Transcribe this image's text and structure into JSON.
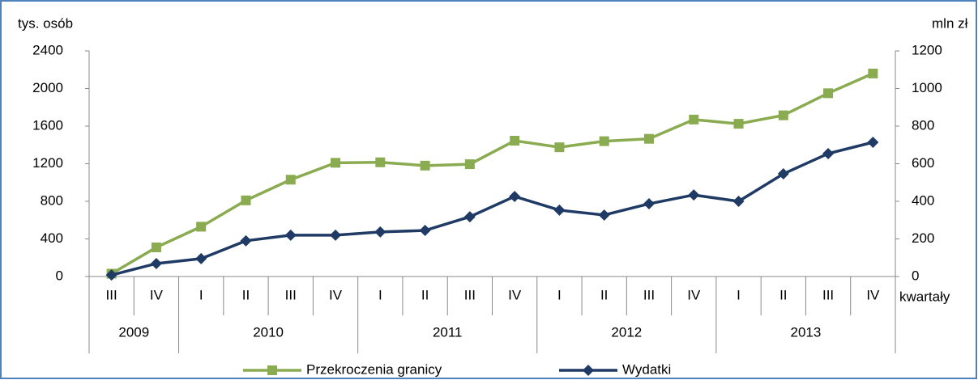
{
  "chart_data": {
    "type": "line",
    "y_label": "tys. osób",
    "y2_label": "mln zł",
    "x_label": "kwartały",
    "groups": [
      {
        "name": "2009",
        "categories": [
          "III",
          "IV"
        ]
      },
      {
        "name": "2010",
        "categories": [
          "I",
          "II",
          "III",
          "IV"
        ]
      },
      {
        "name": "2011",
        "categories": [
          "I",
          "II",
          "III",
          "IV"
        ]
      },
      {
        "name": "2012",
        "categories": [
          "I",
          "II",
          "III",
          "IV"
        ]
      },
      {
        "name": "2013",
        "categories": [
          "I",
          "II",
          "III",
          "IV"
        ]
      }
    ],
    "series": [
      {
        "name": "Przekroczenia granicy",
        "color": "#8aab50",
        "marker": "square",
        "values": [
          30,
          310,
          530,
          810,
          1030,
          1210,
          1215,
          1180,
          1195,
          1445,
          1375,
          1440,
          1465,
          1670,
          1625,
          1715,
          1950,
          2160
        ]
      },
      {
        "name": "Wydatki",
        "color": "#1f3a64",
        "marker": "diamond",
        "axis": "y2",
        "values": [
          8,
          69,
          95,
          190,
          220,
          220,
          237,
          245,
          318,
          426,
          353,
          327,
          387,
          434,
          400,
          546,
          654,
          714
        ]
      }
    ],
    "ylim": [
      0,
      2400
    ],
    "yticks": [
      0,
      400,
      800,
      1200,
      1600,
      2000,
      2400
    ],
    "y2lim": [
      0,
      1200
    ],
    "y2ticks": [
      0,
      200,
      400,
      600,
      800,
      1000,
      1200
    ],
    "grid": false
  }
}
